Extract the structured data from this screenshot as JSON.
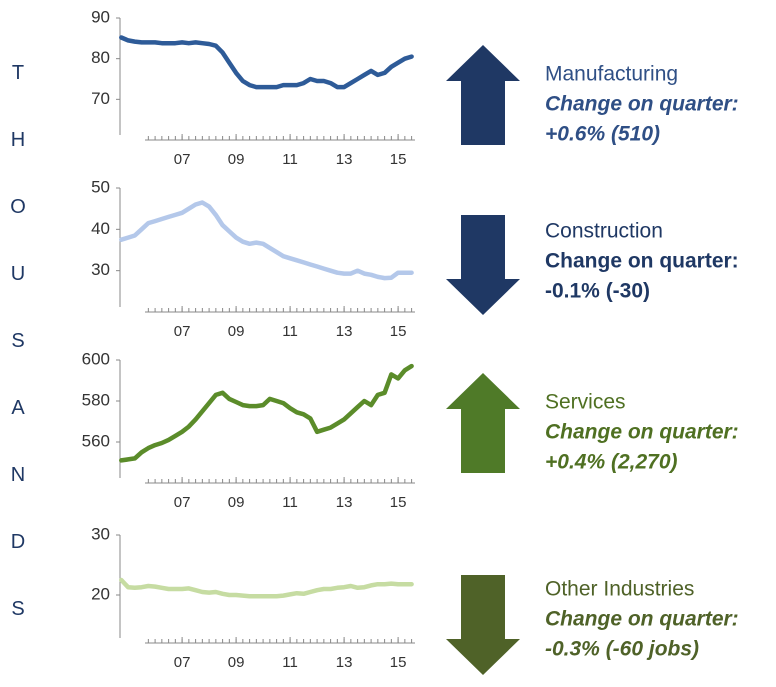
{
  "y_axis_label": "THOUSANDS",
  "chart_data": [
    {
      "type": "line",
      "label": "Manufacturing",
      "change_label": "Change on quarter:",
      "change": "+0.6% (510)",
      "arrow": "up",
      "italic": true,
      "color": "#2e5b98",
      "arrow_color": "#1f3864",
      "text_color": "#2f4f85",
      "x": [
        2004.75,
        2005,
        2005.25,
        2005.5,
        2005.75,
        2006,
        2006.25,
        2006.5,
        2006.75,
        2007,
        2007.25,
        2007.5,
        2007.75,
        2008,
        2008.25,
        2008.5,
        2008.75,
        2009,
        2009.25,
        2009.5,
        2009.75,
        2010,
        2010.25,
        2010.5,
        2010.75,
        2011,
        2011.25,
        2011.5,
        2011.75,
        2012,
        2012.25,
        2012.5,
        2012.75,
        2013,
        2013.25,
        2013.5,
        2013.75,
        2014,
        2014.25,
        2014.5,
        2014.75,
        2015,
        2015.25,
        2015.5
      ],
      "values": [
        85.2,
        84.5,
        84.2,
        84,
        84,
        84,
        83.8,
        83.8,
        83.8,
        84,
        83.8,
        84,
        83.8,
        83.6,
        83.2,
        81.5,
        79,
        76.5,
        74.5,
        73.5,
        73,
        73,
        73,
        73,
        73.5,
        73.5,
        73.5,
        74,
        75,
        74.5,
        74.5,
        74,
        73,
        73,
        74,
        75,
        76,
        77,
        76,
        76.5,
        78,
        79,
        80,
        80.5
      ],
      "xlim": [
        2004.7,
        2015.7
      ],
      "xticks": [
        {
          "value": 2007,
          "label": "07"
        },
        {
          "value": 2009,
          "label": "09"
        },
        {
          "value": 2011,
          "label": "11"
        },
        {
          "value": 2013,
          "label": "13"
        },
        {
          "value": 2015,
          "label": "15"
        }
      ],
      "ylim": [
        60,
        90
      ],
      "yticks": [
        70,
        80,
        90
      ]
    },
    {
      "type": "line",
      "label": "Construction",
      "change_label": "Change on quarter:",
      "change": "-0.1% (-30)",
      "arrow": "down",
      "italic": false,
      "color": "#b4c8ea",
      "arrow_color": "#1f3864",
      "text_color": "#1f3864",
      "x": [
        2004.75,
        2005,
        2005.25,
        2005.5,
        2005.75,
        2006,
        2006.25,
        2006.5,
        2006.75,
        2007,
        2007.25,
        2007.5,
        2007.75,
        2008,
        2008.25,
        2008.5,
        2008.75,
        2009,
        2009.25,
        2009.5,
        2009.75,
        2010,
        2010.25,
        2010.5,
        2010.75,
        2011,
        2011.25,
        2011.5,
        2011.75,
        2012,
        2012.25,
        2012.5,
        2012.75,
        2013,
        2013.25,
        2013.5,
        2013.75,
        2014,
        2014.25,
        2014.5,
        2014.75,
        2015,
        2015.25,
        2015.5
      ],
      "values": [
        37.5,
        38,
        38.5,
        40,
        41.5,
        42,
        42.5,
        43,
        43.5,
        44,
        45,
        46,
        46.5,
        45.5,
        43.5,
        41,
        39.5,
        38,
        37,
        36.5,
        36.8,
        36.5,
        35.5,
        34.5,
        33.5,
        33,
        32.5,
        32,
        31.5,
        31,
        30.5,
        30,
        29.5,
        29.3,
        29.3,
        30,
        29.3,
        29,
        28.5,
        28.2,
        28.3,
        29.5,
        29.5,
        29.5
      ],
      "xlim": [
        2004.7,
        2015.7
      ],
      "xticks": [
        {
          "value": 2007,
          "label": "07"
        },
        {
          "value": 2009,
          "label": "09"
        },
        {
          "value": 2011,
          "label": "11"
        },
        {
          "value": 2013,
          "label": "13"
        },
        {
          "value": 2015,
          "label": "15"
        }
      ],
      "ylim": [
        20,
        50
      ],
      "yticks": [
        30,
        40,
        50
      ]
    },
    {
      "type": "line",
      "label": "Services",
      "change_label": "Change on quarter:",
      "change": "+0.4% (2,270)",
      "arrow": "up",
      "italic": true,
      "color": "#5b8c2a",
      "arrow_color": "#4f7a28",
      "text_color": "#4f7022",
      "x": [
        2004.75,
        2005,
        2005.25,
        2005.5,
        2005.75,
        2006,
        2006.25,
        2006.5,
        2006.75,
        2007,
        2007.25,
        2007.5,
        2007.75,
        2008,
        2008.25,
        2008.5,
        2008.75,
        2009,
        2009.25,
        2009.5,
        2009.75,
        2010,
        2010.25,
        2010.5,
        2010.75,
        2011,
        2011.25,
        2011.5,
        2011.75,
        2012,
        2012.25,
        2012.5,
        2012.75,
        2013,
        2013.25,
        2013.5,
        2013.75,
        2014,
        2014.25,
        2014.5,
        2014.75,
        2015,
        2015.25,
        2015.5
      ],
      "values": [
        551,
        551.5,
        552,
        555,
        557,
        558.5,
        559.5,
        561,
        563,
        565,
        567.5,
        571,
        575,
        579,
        583,
        584,
        581,
        579.5,
        578,
        577.5,
        577.5,
        578,
        581,
        580,
        579,
        576.5,
        574.5,
        573.5,
        571.5,
        565,
        566,
        567,
        569,
        571,
        574,
        577,
        580,
        578,
        583,
        584,
        593,
        591,
        595,
        597
      ],
      "xlim": [
        2004.7,
        2015.7
      ],
      "xticks": [
        {
          "value": 2007,
          "label": "07"
        },
        {
          "value": 2009,
          "label": "09"
        },
        {
          "value": 2011,
          "label": "11"
        },
        {
          "value": 2013,
          "label": "13"
        },
        {
          "value": 2015,
          "label": "15"
        }
      ],
      "ylim": [
        540,
        600
      ],
      "yticks": [
        560,
        580,
        600
      ]
    },
    {
      "type": "line",
      "label": "Other Industries",
      "change_label": "Change on quarter:",
      "change": "-0.3% (-60 jobs)",
      "arrow": "down",
      "italic": true,
      "color": "#c6dca2",
      "arrow_color": "#4f6228",
      "text_color": "#4f6228",
      "x": [
        2004.75,
        2005,
        2005.25,
        2005.5,
        2005.75,
        2006,
        2006.25,
        2006.5,
        2006.75,
        2007,
        2007.25,
        2007.5,
        2007.75,
        2008,
        2008.25,
        2008.5,
        2008.75,
        2009,
        2009.25,
        2009.5,
        2009.75,
        2010,
        2010.25,
        2010.5,
        2010.75,
        2011,
        2011.25,
        2011.5,
        2011.75,
        2012,
        2012.25,
        2012.5,
        2012.75,
        2013,
        2013.25,
        2013.5,
        2013.75,
        2014,
        2014.25,
        2014.5,
        2014.75,
        2015,
        2015.25,
        2015.5
      ],
      "values": [
        22.5,
        21.3,
        21.2,
        21.3,
        21.5,
        21.4,
        21.2,
        21,
        21,
        21,
        21.1,
        20.8,
        20.5,
        20.4,
        20.5,
        20.2,
        20,
        20,
        19.9,
        19.8,
        19.8,
        19.8,
        19.8,
        19.8,
        19.9,
        20.1,
        20.3,
        20.2,
        20.5,
        20.8,
        21,
        21,
        21.2,
        21.3,
        21.5,
        21.2,
        21.3,
        21.6,
        21.8,
        21.8,
        21.9,
        21.8,
        21.8,
        21.8
      ],
      "xlim": [
        2004.7,
        2015.7
      ],
      "xticks": [
        {
          "value": 2007,
          "label": "07"
        },
        {
          "value": 2009,
          "label": "09"
        },
        {
          "value": 2011,
          "label": "11"
        },
        {
          "value": 2013,
          "label": "13"
        },
        {
          "value": 2015,
          "label": "15"
        }
      ],
      "ylim": [
        12,
        30
      ],
      "yticks": [
        20,
        30
      ]
    }
  ]
}
